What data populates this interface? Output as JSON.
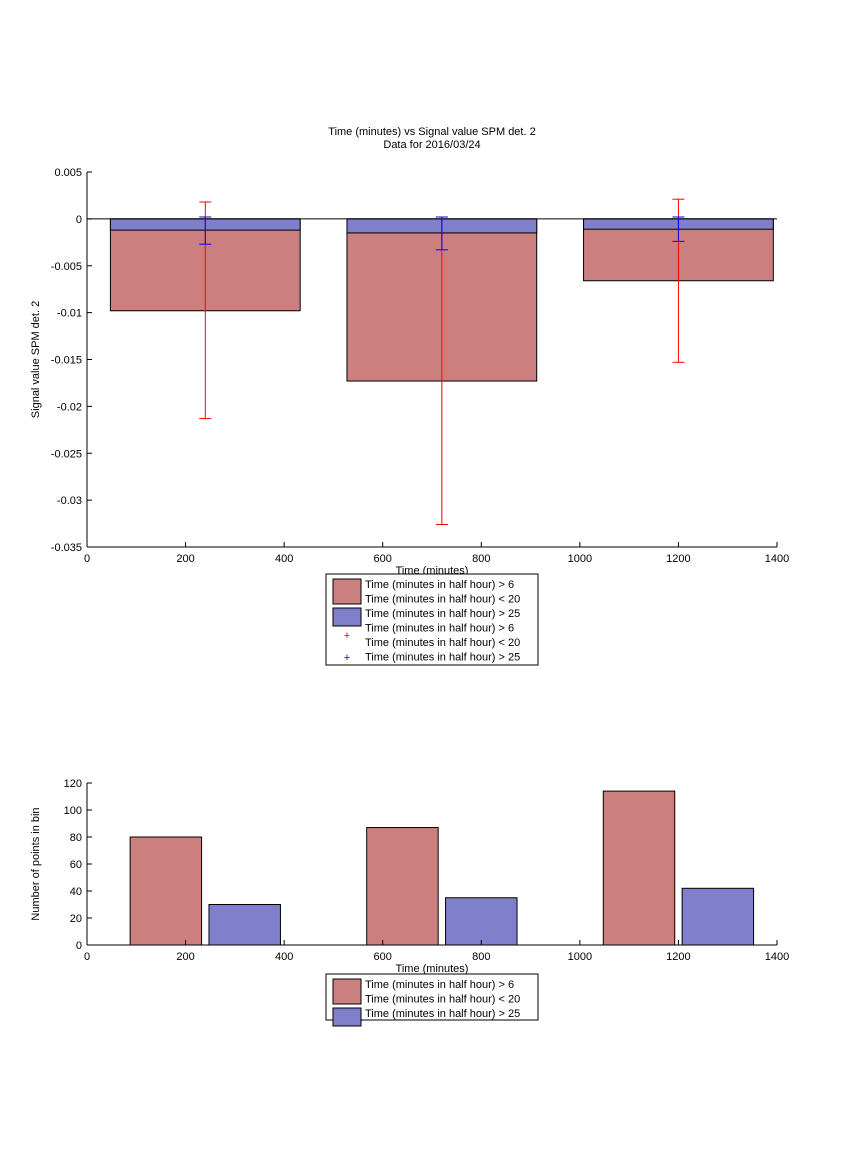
{
  "chart_data": [
    {
      "type": "bar",
      "title": "Time (minutes) vs Signal value SPM det. 2",
      "subtitle": "Data for 2016/03/24",
      "xlabel": "Time (minutes)",
      "ylabel": "Signal value SPM det. 2",
      "xlim": [
        0,
        1400
      ],
      "ylim": [
        -0.035,
        0.005
      ],
      "xticks": [
        "0",
        "200",
        "400",
        "600",
        "800",
        "1000",
        "1200",
        "1400"
      ],
      "yticks": [
        "0.005",
        "0",
        "-0.005",
        "-0.01",
        "-0.015",
        "-0.02",
        "-0.025",
        "-0.03",
        "-0.035"
      ],
      "grid": false,
      "legend_position": "below",
      "x": [
        240,
        720,
        1200
      ],
      "bar_width": 385,
      "series": [
        {
          "name": "Time (minutes in half hour) > 6\nTime (minutes in half hour) < 20",
          "values": [
            -0.0098,
            -0.0173,
            -0.0066
          ],
          "color": "#cc7f7f",
          "error_low": [
            -0.0213,
            -0.0326,
            -0.0153
          ],
          "error_high": [
            0.0018,
            0.0002,
            0.0021
          ],
          "error_color": "#ff0000"
        },
        {
          "name": "Time (minutes in half hour) > 25",
          "values": [
            -0.0012,
            -0.0015,
            -0.0011
          ],
          "color": "#7f7fcc",
          "error_low": [
            -0.0027,
            -0.0033,
            -0.0024
          ],
          "error_high": [
            0.0002,
            0.0002,
            0.0002
          ],
          "error_color": "#0000ff"
        }
      ],
      "legend": [
        {
          "type": "patch",
          "lines": [
            "Time (minutes in half hour) > 6",
            "Time (minutes in half hour) < 20"
          ],
          "color": "#cc7f7f"
        },
        {
          "type": "patch",
          "lines": [
            "Time (minutes in half hour) > 25"
          ],
          "color": "#7f7fcc"
        },
        {
          "type": "marker",
          "lines": [
            "Time (minutes in half hour) > 6",
            "Time (minutes in half hour) < 20"
          ],
          "color": "#ff0000"
        },
        {
          "type": "marker",
          "lines": [
            "Time (minutes in half hour) > 25"
          ],
          "color": "#0000ff"
        }
      ]
    },
    {
      "type": "bar",
      "title": "",
      "xlabel": "Time (minutes)",
      "ylabel": "Number of points in bin",
      "xlim": [
        0,
        1400
      ],
      "ylim": [
        0,
        120
      ],
      "xticks": [
        "0",
        "200",
        "400",
        "600",
        "800",
        "1000",
        "1200",
        "1400"
      ],
      "yticks": [
        "0",
        "20",
        "40",
        "60",
        "80",
        "100",
        "120"
      ],
      "grid": false,
      "legend_position": "below",
      "categories": [
        240,
        720,
        1200
      ],
      "bar_width": 145,
      "series": [
        {
          "name": "Time (minutes in half hour) > 6\nTime (minutes in half hour) < 20",
          "values": [
            80,
            87,
            114
          ],
          "x": [
            160,
            640,
            1120
          ],
          "color": "#cc7f7f"
        },
        {
          "name": "Time (minutes in half hour) > 25",
          "values": [
            30,
            35,
            42
          ],
          "x": [
            320,
            800,
            1280
          ],
          "color": "#7f7fcc"
        }
      ],
      "legend": [
        {
          "type": "patch",
          "lines": [
            "Time (minutes in half hour) > 6",
            "Time (minutes in half hour) < 20"
          ],
          "color": "#cc7f7f"
        },
        {
          "type": "patch",
          "lines": [
            "Time (minutes in half hour) > 25"
          ],
          "color": "#7f7fcc"
        }
      ]
    }
  ]
}
